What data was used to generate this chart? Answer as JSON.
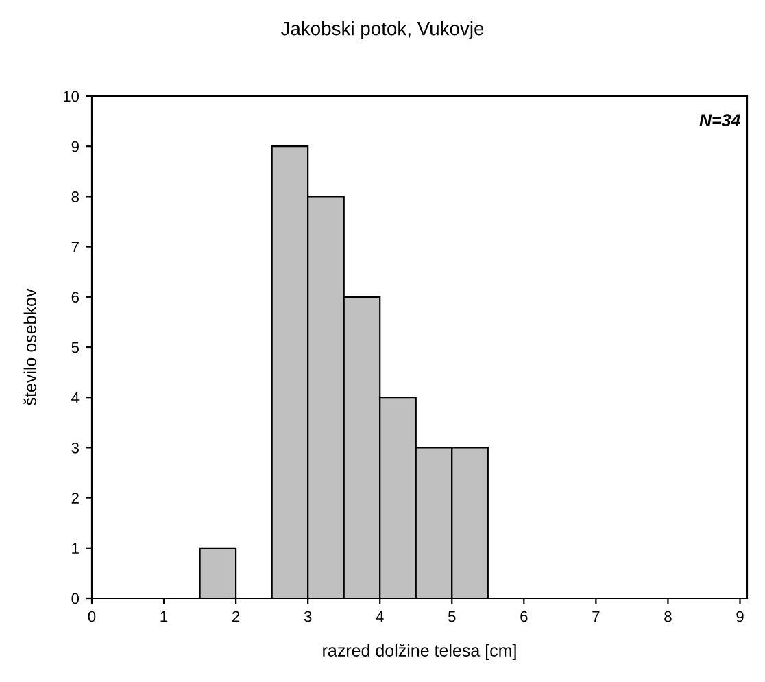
{
  "chart_data": {
    "type": "histogram",
    "title": "Jakobski potok, Vukovje",
    "xlabel": "razred dolžine telesa [cm]",
    "ylabel": "število osebkov",
    "bins": [
      0,
      0.5,
      1,
      1.5,
      2,
      2.5,
      3,
      3.5,
      4,
      4.5,
      5,
      5.5,
      6,
      6.5,
      7,
      7.5,
      8,
      8.5,
      9
    ],
    "values": [
      0,
      0,
      0,
      1,
      0,
      9,
      8,
      6,
      4,
      3,
      3,
      0,
      0,
      0,
      0,
      0,
      0,
      0
    ],
    "color": "#c0c0c0",
    "xlim": [
      0,
      9.1
    ],
    "xticks": [
      0,
      1,
      2,
      3,
      4,
      5,
      6,
      7,
      8,
      9
    ],
    "ylim": [
      0,
      10
    ],
    "yticks": [
      0,
      1,
      2,
      3,
      4,
      5,
      6,
      7,
      8,
      9,
      10
    ],
    "grid": false,
    "annotations": [
      "N=34"
    ]
  }
}
